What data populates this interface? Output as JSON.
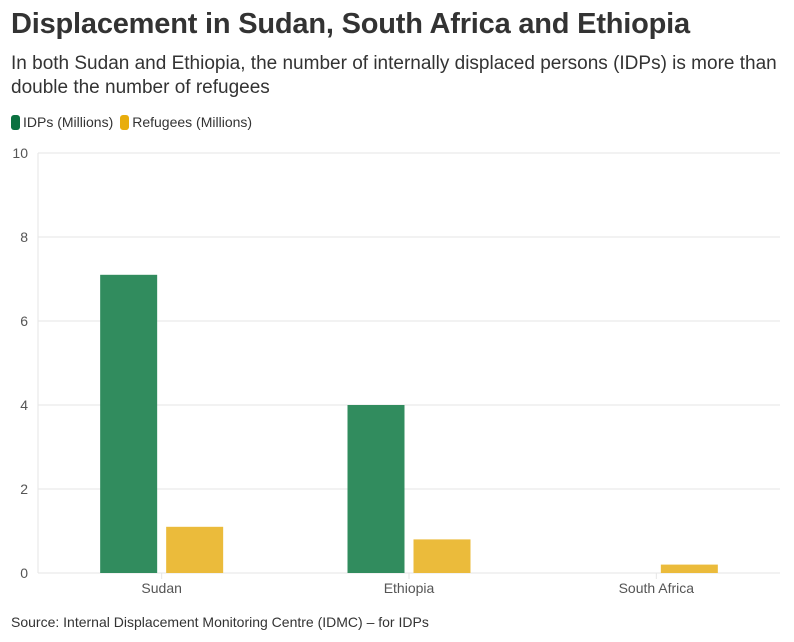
{
  "header": {
    "title": "Displacement in Sudan, South Africa and Ethiopia",
    "subtitle": "In both Sudan and Ethiopia, the number of internally displaced persons (IDPs) is more than double the number of refugees"
  },
  "legend": [
    {
      "label": "IDPs (Millions)",
      "color": "#0b7140"
    },
    {
      "label": "Refugees (Millions)",
      "color": "#e8ad0c"
    }
  ],
  "footer": {
    "source": "Source: Internal Displacement Monitoring Centre (IDMC) – for IDPs"
  },
  "chart_data": {
    "type": "bar",
    "title": "Displacement in Sudan, South Africa and Ethiopia",
    "subtitle": "In both Sudan and Ethiopia, the number of internally displaced persons (IDPs) is more than double the number of refugees",
    "categories": [
      "Sudan",
      "Ethiopia",
      "South Africa"
    ],
    "series": [
      {
        "name": "IDPs (Millions)",
        "color": "#318c5e",
        "values": [
          7.1,
          4.0,
          null
        ]
      },
      {
        "name": "Refugees (Millions)",
        "color": "#ebbb3b",
        "values": [
          1.1,
          0.8,
          0.2
        ]
      }
    ],
    "xlabel": "",
    "ylabel": "",
    "ylim": [
      0,
      10
    ],
    "yticks": [
      0,
      2,
      4,
      6,
      8,
      10
    ],
    "grid": true,
    "legend_position": "top-left"
  }
}
